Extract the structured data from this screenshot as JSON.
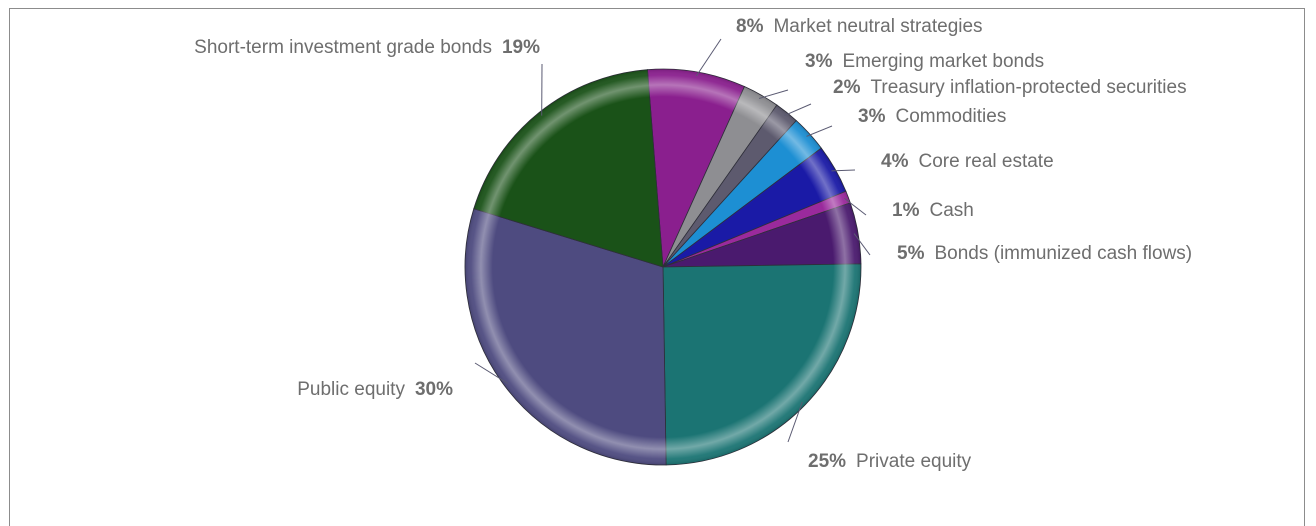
{
  "chart_data": {
    "type": "pie",
    "title": "",
    "slices": [
      {
        "label": "Market neutral strategies",
        "value": 8,
        "percent_label": "8%",
        "color": "#8a1f8e"
      },
      {
        "label": "Emerging market bonds",
        "value": 3,
        "percent_label": "3%",
        "color": "#8e8e92"
      },
      {
        "label": "Treasury inflation-protected securities",
        "value": 2,
        "percent_label": "2%",
        "color": "#5d5a6e"
      },
      {
        "label": "Commodities",
        "value": 3,
        "percent_label": "3%",
        "color": "#1d8fd3"
      },
      {
        "label": "Core real estate",
        "value": 4,
        "percent_label": "4%",
        "color": "#1a1aa6"
      },
      {
        "label": "Cash",
        "value": 1,
        "percent_label": "1%",
        "color": "#9a2a9c"
      },
      {
        "label": "Bonds (immunized cash flows)",
        "value": 5,
        "percent_label": "5%",
        "color": "#4a1a6e"
      },
      {
        "label": "Private equity",
        "value": 25,
        "percent_label": "25%",
        "color": "#1b7473"
      },
      {
        "label": "Public equity",
        "value": 30,
        "percent_label": "30%",
        "color": "#4e4b80"
      },
      {
        "label": "Short-term investment grade bonds",
        "value": 19,
        "percent_label": "19%",
        "color": "#1a5218"
      }
    ]
  }
}
